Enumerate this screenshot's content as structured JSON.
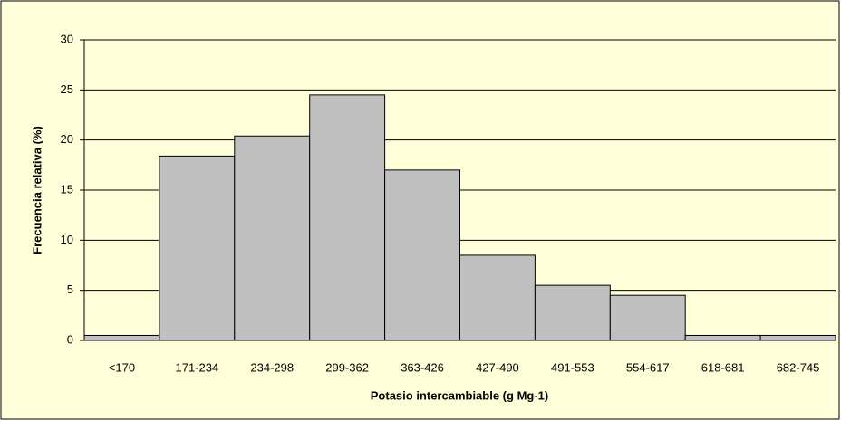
{
  "chart_data": {
    "type": "bar",
    "x_label": "Potasio intercambiable (g Mg-1)",
    "y_label": "Frecuencia relativa (%)",
    "categories": [
      "<170",
      "171-234",
      "234-298",
      "299-362",
      "363-426",
      "427-490",
      "491-553",
      "554-617",
      "618-681",
      "682-745"
    ],
    "values": [
      0.5,
      18.4,
      20.4,
      24.5,
      17.0,
      8.5,
      5.5,
      4.5,
      0.5,
      0.5
    ],
    "color": "#c0c0c0",
    "ylim": [
      0,
      30
    ],
    "yticks": [
      0,
      5,
      10,
      15,
      20,
      25,
      30
    ],
    "grid": true
  }
}
